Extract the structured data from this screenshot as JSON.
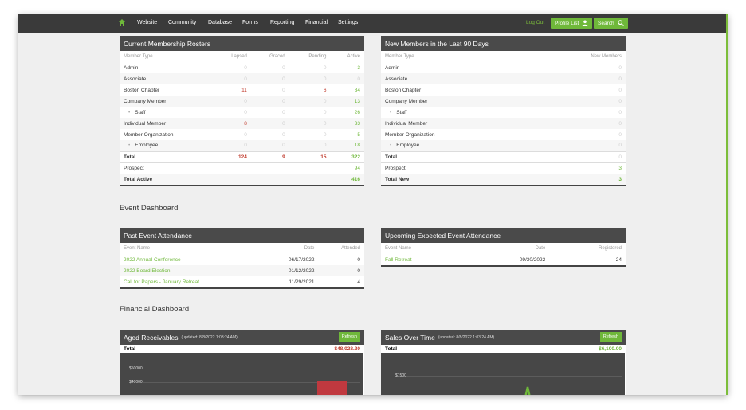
{
  "nav": {
    "links": [
      "Website",
      "Community",
      "Database",
      "Forms",
      "Reporting",
      "Financial",
      "Settings"
    ],
    "logout": "Log Out",
    "profile_list": "Profile List",
    "search": "Search"
  },
  "rosters": {
    "title": "Current Membership Rosters",
    "headers": [
      "Member Type",
      "Lapsed",
      "Graced",
      "Pending",
      "Active"
    ],
    "rows": [
      {
        "name": "Admin",
        "sub": false,
        "lapsed": "0",
        "graced": "0",
        "pending": "0",
        "active": "3"
      },
      {
        "name": "Associate",
        "sub": false,
        "lapsed": "0",
        "graced": "0",
        "pending": "0",
        "active": "0"
      },
      {
        "name": "Boston Chapter",
        "sub": false,
        "lapsed": "11",
        "graced": "0",
        "pending": "6",
        "active": "34"
      },
      {
        "name": "Company Member",
        "sub": false,
        "lapsed": "0",
        "graced": "0",
        "pending": "0",
        "active": "13"
      },
      {
        "name": "Staff",
        "sub": true,
        "lapsed": "0",
        "graced": "0",
        "pending": "0",
        "active": "26"
      },
      {
        "name": "Individual Member",
        "sub": false,
        "lapsed": "8",
        "graced": "0",
        "pending": "0",
        "active": "33"
      },
      {
        "name": "Member Organization",
        "sub": false,
        "lapsed": "0",
        "graced": "0",
        "pending": "0",
        "active": "5"
      },
      {
        "name": "Employee",
        "sub": true,
        "lapsed": "0",
        "graced": "0",
        "pending": "0",
        "active": "18"
      }
    ],
    "total": {
      "name": "Total",
      "lapsed": "124",
      "graced": "9",
      "pending": "15",
      "active": "322"
    },
    "prospect": {
      "name": "Prospect",
      "value": "94"
    },
    "total_active": {
      "name": "Total Active",
      "value": "416"
    }
  },
  "newmembers": {
    "title": "New Members in the Last 90 Days",
    "headers": [
      "Member Type",
      "New Members"
    ],
    "rows": [
      {
        "name": "Admin",
        "sub": false,
        "value": "0"
      },
      {
        "name": "Associate",
        "sub": false,
        "value": "0"
      },
      {
        "name": "Boston Chapter",
        "sub": false,
        "value": "0"
      },
      {
        "name": "Company Member",
        "sub": false,
        "value": "0"
      },
      {
        "name": "Staff",
        "sub": true,
        "value": "0"
      },
      {
        "name": "Individual Member",
        "sub": false,
        "value": "0"
      },
      {
        "name": "Member Organization",
        "sub": false,
        "value": "0"
      },
      {
        "name": "Employee",
        "sub": true,
        "value": "0"
      }
    ],
    "total": {
      "name": "Total",
      "value": "0"
    },
    "prospect": {
      "name": "Prospect",
      "value": "3"
    },
    "total_new": {
      "name": "Total New",
      "value": "3"
    }
  },
  "event_dashboard": "Event Dashboard",
  "past_events": {
    "title": "Past Event Attendance",
    "headers": [
      "Event Name",
      "Date",
      "Attended"
    ],
    "rows": [
      {
        "name": "2022 Annual Conference",
        "date": "06/17/2022",
        "value": "0"
      },
      {
        "name": "2022 Board Election",
        "date": "01/12/2022",
        "value": "0"
      },
      {
        "name": "Call for Papers - January Retreat",
        "date": "11/29/2021",
        "value": "4"
      }
    ]
  },
  "upcoming_events": {
    "title": "Upcoming Expected Event Attendance",
    "headers": [
      "Event Name",
      "Date",
      "Registered"
    ],
    "rows": [
      {
        "name": "Fall Retreat",
        "date": "09/30/2022",
        "value": "24"
      }
    ]
  },
  "financial_dashboard": "Financial Dashboard",
  "aged": {
    "title": "Aged Receivables",
    "updated": "(updated: 8/8/2022 1:03:24 AM)",
    "refresh": "Refresh",
    "total_label": "Total",
    "total_value": "$48,028.20",
    "ticks": [
      "$50000",
      "$40000"
    ]
  },
  "sales": {
    "title": "Sales Over Time",
    "updated": "(updated: 8/8/2022 1:03:24 AM)",
    "refresh": "Refresh",
    "total_label": "Total",
    "total_value": "$6,100.00",
    "ticks": [
      "$1500"
    ]
  },
  "colors": {
    "accent": "#6fb83a",
    "danger": "#c0392b",
    "header": "#4a4a4a",
    "nav": "#3a3a3a"
  }
}
